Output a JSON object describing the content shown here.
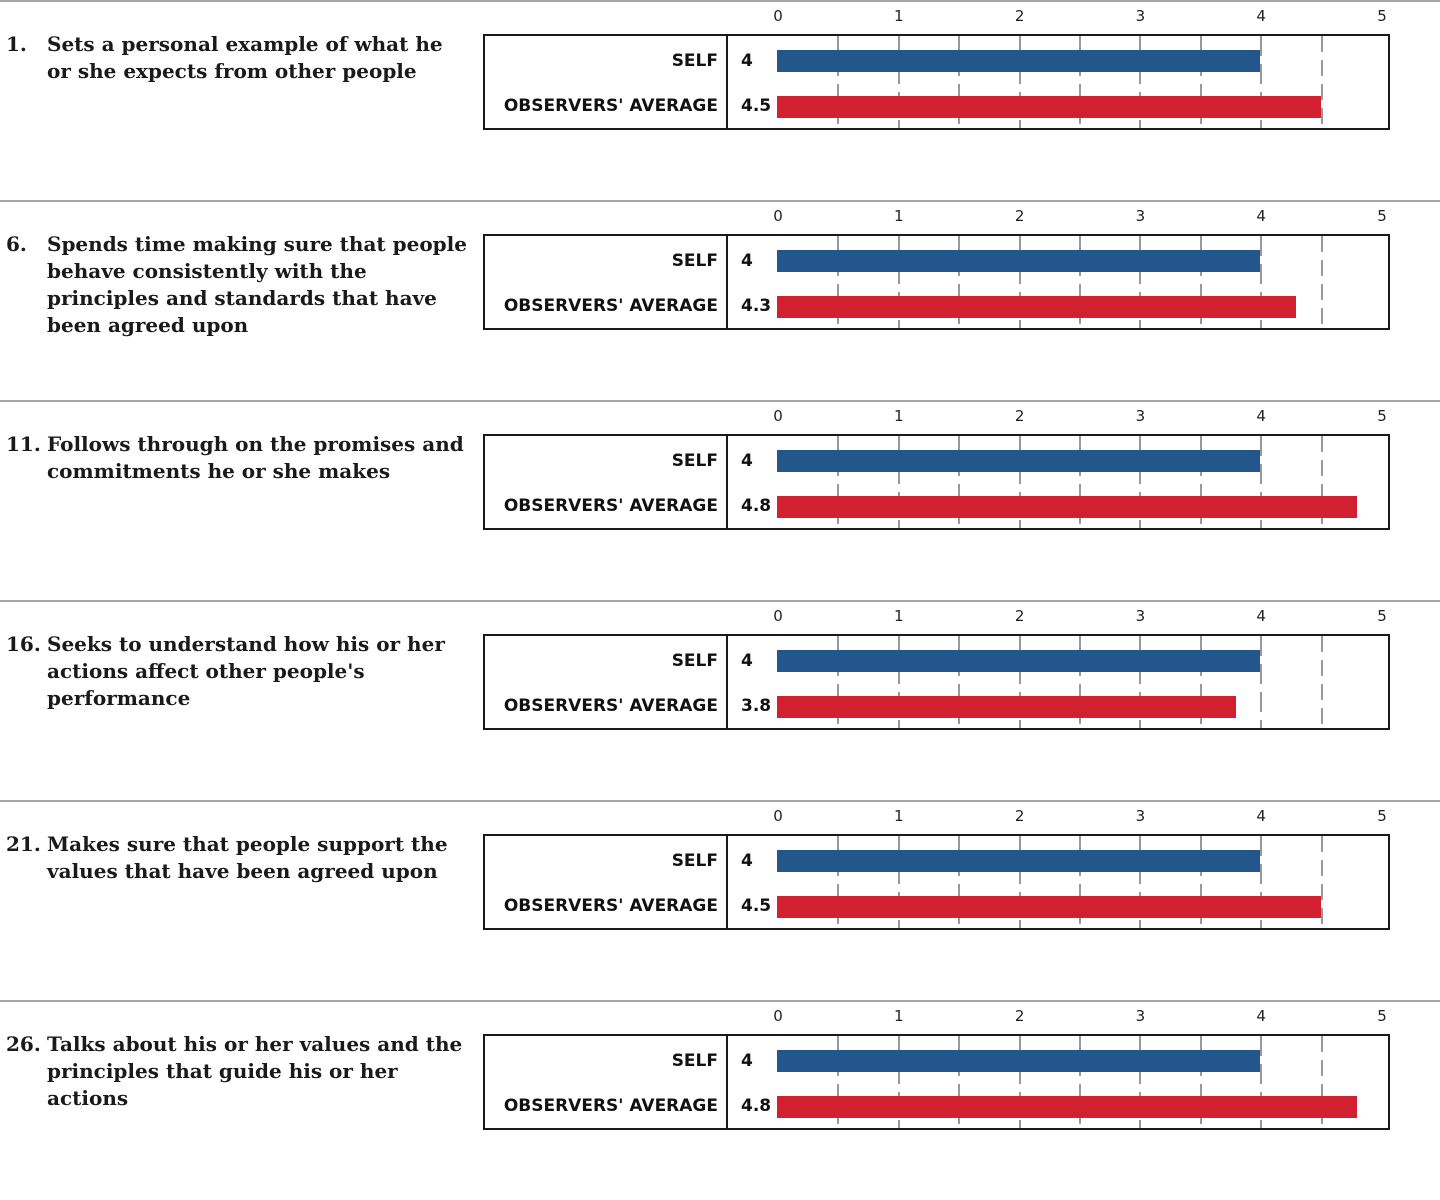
{
  "colors": {
    "self": "#23578b",
    "observers": "#d32030"
  },
  "series_labels": {
    "self": "SELF",
    "observers": "OBSERVERS' AVERAGE"
  },
  "items": [
    {
      "number": "1.",
      "text": "Sets a personal example of what he or she expects from other people",
      "self": "4",
      "observers": "4.5"
    },
    {
      "number": "6.",
      "text": "Spends time making sure that people behave consistently with the principles and standards that have been agreed upon",
      "self": "4",
      "observers": "4.3"
    },
    {
      "number": "11.",
      "text": "Follows through on the promises and commitments he or she makes",
      "self": "4",
      "observers": "4.8"
    },
    {
      "number": "16.",
      "text": "Seeks to understand how his or her actions affect other people's performance",
      "self": "4",
      "observers": "3.8"
    },
    {
      "number": "21.",
      "text": "Makes sure that people support the values that have been agreed upon",
      "self": "4",
      "observers": "4.5"
    },
    {
      "number": "26.",
      "text": "Talks about his or her values and the principles that guide his or her actions",
      "self": "4",
      "observers": "4.8"
    }
  ],
  "chart_data": {
    "type": "bar",
    "orientation": "horizontal",
    "xlim": [
      0,
      5
    ],
    "ticks": [
      "0",
      "1",
      "2",
      "3",
      "4",
      "5"
    ],
    "categories": [
      "1",
      "6",
      "11",
      "16",
      "21",
      "26"
    ],
    "series": [
      {
        "name": "SELF",
        "values": [
          4,
          4,
          4,
          4,
          4,
          4
        ]
      },
      {
        "name": "OBSERVERS' AVERAGE",
        "values": [
          4.5,
          4.3,
          4.8,
          3.8,
          4.5,
          4.8
        ]
      }
    ]
  }
}
